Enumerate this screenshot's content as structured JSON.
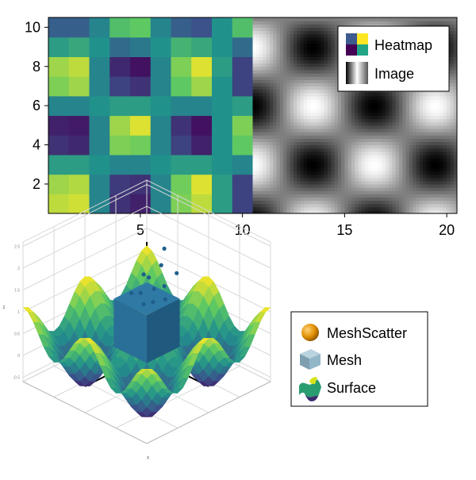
{
  "chart_data": [
    {
      "type": "heatmap",
      "panel": "top",
      "title": "",
      "xlabel": "",
      "ylabel": "",
      "xlim": [
        0.5,
        20.5
      ],
      "ylim": [
        0.5,
        10.5
      ],
      "x_ticks": [
        "5",
        "10",
        "15",
        "20"
      ],
      "y_ticks": [
        "2",
        "4",
        "6",
        "8",
        "10"
      ],
      "heatmap": {
        "x_range": [
          1,
          10
        ],
        "y_range": [
          1,
          10
        ],
        "colormap": "viridis",
        "grid": [
          [
            0.9,
            0.93,
            0.45,
            0.15,
            0.1,
            0.45,
            0.8,
            0.9,
            0.55,
            0.2
          ],
          [
            0.85,
            0.88,
            0.45,
            0.18,
            0.15,
            0.45,
            0.78,
            0.95,
            0.55,
            0.2
          ],
          [
            0.55,
            0.55,
            0.5,
            0.45,
            0.45,
            0.5,
            0.55,
            0.55,
            0.5,
            0.45
          ],
          [
            0.15,
            0.12,
            0.45,
            0.8,
            0.78,
            0.45,
            0.2,
            0.1,
            0.5,
            0.75
          ],
          [
            0.1,
            0.08,
            0.45,
            0.85,
            0.95,
            0.45,
            0.15,
            0.05,
            0.5,
            0.8
          ],
          [
            0.45,
            0.45,
            0.5,
            0.55,
            0.55,
            0.5,
            0.45,
            0.45,
            0.5,
            0.55
          ],
          [
            0.8,
            0.85,
            0.45,
            0.2,
            0.15,
            0.45,
            0.75,
            0.85,
            0.5,
            0.2
          ],
          [
            0.85,
            0.9,
            0.45,
            0.12,
            0.05,
            0.45,
            0.8,
            0.95,
            0.55,
            0.2
          ],
          [
            0.55,
            0.6,
            0.5,
            0.35,
            0.4,
            0.5,
            0.65,
            0.6,
            0.5,
            0.35
          ],
          [
            0.3,
            0.3,
            0.45,
            0.7,
            0.75,
            0.45,
            0.3,
            0.25,
            0.5,
            0.7
          ]
        ]
      },
      "image": {
        "x_range": [
          10.5,
          20.5
        ],
        "y_range": [
          0.5,
          10.5
        ],
        "colormap": "grays",
        "function": "0.5 + 0.5*sin(x*1.05)*cos(y*1.05)"
      },
      "legend": {
        "position": "top-right",
        "entries": [
          "Heatmap",
          "Image"
        ]
      },
      "grid": false
    },
    {
      "type": "surface",
      "panel": "bottom",
      "title": "",
      "axis_labels": {
        "x": "x",
        "y": "y",
        "z": "z"
      },
      "z_ticks": [
        "-0.5",
        "0",
        "0.5",
        "1",
        "1.5",
        "2",
        "2.5"
      ],
      "surface_colormap": "viridis",
      "mesh_color": "#2a6f97",
      "meshscatter_color": "#1f5f8b",
      "legend": {
        "position": "right",
        "entries": [
          "MeshScatter",
          "Mesh",
          "Surface"
        ]
      }
    }
  ],
  "colors": {
    "meshscatter_swatch": "#d98a00",
    "mesh_swatch": "#8fb3c6",
    "surface_swatch": "#3b8c6e"
  }
}
